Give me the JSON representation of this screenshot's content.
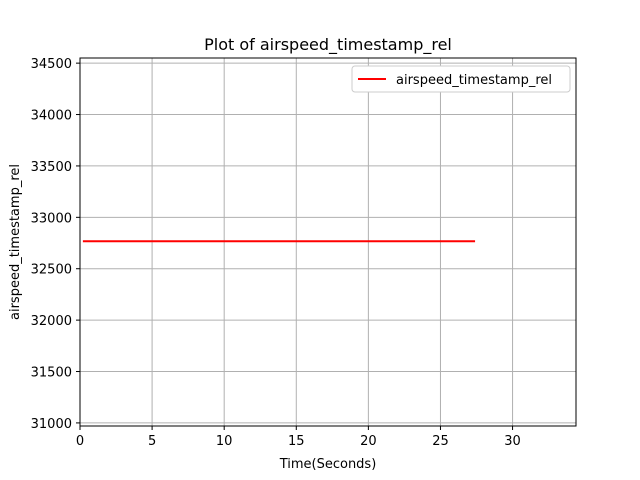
{
  "chart_data": {
    "type": "line",
    "title": "Plot of airspeed_timestamp_rel",
    "xlabel": "Time(Seconds)",
    "ylabel": "airspeed_timestamp_rel",
    "xlim": [
      0,
      34.4
    ],
    "ylim": [
      30970,
      34550
    ],
    "xticks": [
      0,
      5,
      10,
      15,
      20,
      25,
      30
    ],
    "yticks": [
      31000,
      31500,
      32000,
      32500,
      33000,
      33500,
      34000,
      34500
    ],
    "grid": true,
    "legend_position": "top-right",
    "series": [
      {
        "name": "airspeed_timestamp_rel",
        "color": "#ff0000",
        "x": [
          0.2,
          27.4
        ],
        "y": [
          32767,
          32767
        ]
      }
    ]
  }
}
